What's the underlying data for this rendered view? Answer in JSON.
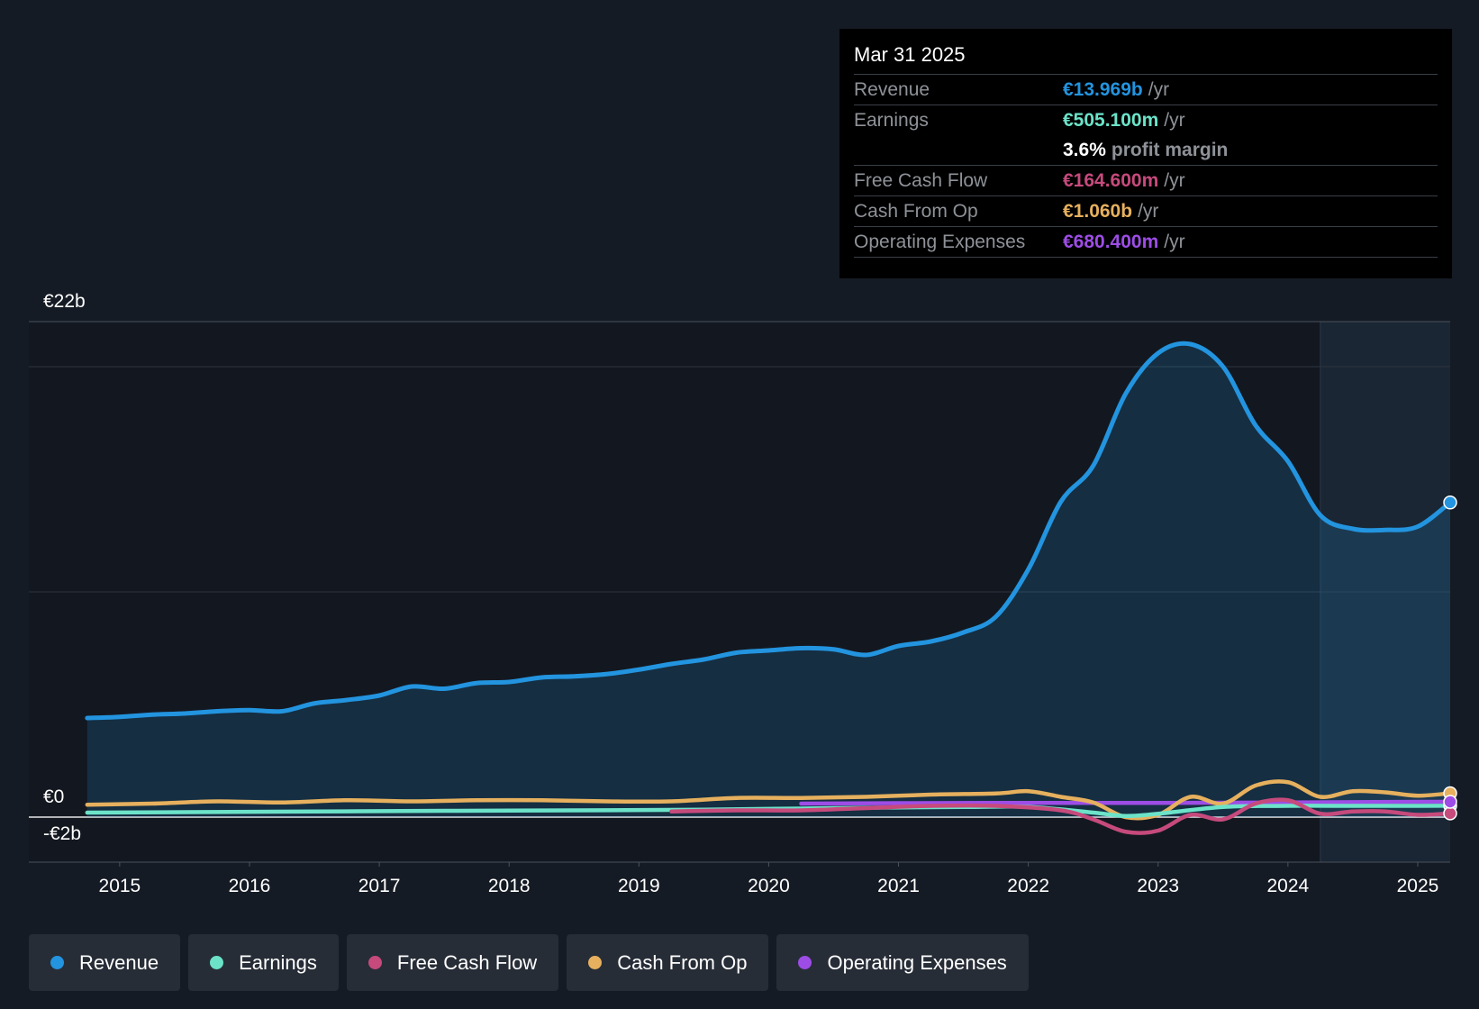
{
  "tooltip": {
    "date": "Mar 31 2025",
    "rows": [
      {
        "label": "Revenue",
        "value": "€13.969b",
        "unit": "/yr",
        "color": "#2394df"
      },
      {
        "label": "Earnings",
        "value": "€505.100m",
        "unit": "/yr",
        "color": "#6ce3c9"
      },
      {
        "label": "",
        "value": "3.6%",
        "unit": "profit margin",
        "color": "#ffffff"
      },
      {
        "label": "Free Cash Flow",
        "value": "€164.600m",
        "unit": "/yr",
        "color": "#c64a7c"
      },
      {
        "label": "Cash From Op",
        "value": "€1.060b",
        "unit": "/yr",
        "color": "#e6b05e"
      },
      {
        "label": "Operating Expenses",
        "value": "€680.400m",
        "unit": "/yr",
        "color": "#9d4de6"
      }
    ]
  },
  "chart_data": {
    "type": "line",
    "ylim": [
      -2,
      22
    ],
    "xlim": [
      2014.3,
      2025.25
    ],
    "ytick_labels": [
      {
        "value": 22,
        "label": "€22b"
      },
      {
        "value": 0,
        "label": "€0"
      },
      {
        "value": -2,
        "label": "-€2b"
      }
    ],
    "gridlines": [
      20,
      10
    ],
    "xticks": [
      {
        "value": 2015,
        "label": "2015"
      },
      {
        "value": 2016,
        "label": "2016"
      },
      {
        "value": 2017,
        "label": "2017"
      },
      {
        "value": 2018,
        "label": "2018"
      },
      {
        "value": 2019,
        "label": "2019"
      },
      {
        "value": 2020,
        "label": "2020"
      },
      {
        "value": 2021,
        "label": "2021"
      },
      {
        "value": 2022,
        "label": "2022"
      },
      {
        "value": 2023,
        "label": "2023"
      },
      {
        "value": 2024,
        "label": "2024"
      },
      {
        "value": 2025,
        "label": "2025"
      }
    ],
    "highlight_from": 2024.25,
    "series": [
      {
        "name": "Revenue",
        "color": "#2394df",
        "fill": true,
        "x": [
          2014.75,
          2015.0,
          2015.25,
          2015.5,
          2015.75,
          2016.0,
          2016.25,
          2016.5,
          2016.75,
          2017.0,
          2017.25,
          2017.5,
          2017.75,
          2018.0,
          2018.25,
          2018.5,
          2018.75,
          2019.0,
          2019.25,
          2019.5,
          2019.75,
          2020.0,
          2020.25,
          2020.5,
          2020.75,
          2021.0,
          2021.25,
          2021.5,
          2021.75,
          2022.0,
          2022.25,
          2022.5,
          2022.75,
          2023.0,
          2023.25,
          2023.5,
          2023.75,
          2024.0,
          2024.25,
          2024.5,
          2024.75,
          2025.0,
          2025.25
        ],
        "y": [
          4.4,
          4.45,
          4.55,
          4.6,
          4.7,
          4.75,
          4.7,
          5.05,
          5.2,
          5.4,
          5.8,
          5.7,
          5.95,
          6.0,
          6.2,
          6.25,
          6.35,
          6.55,
          6.8,
          7.0,
          7.3,
          7.4,
          7.5,
          7.45,
          7.2,
          7.6,
          7.8,
          8.2,
          8.9,
          11.0,
          14.0,
          15.6,
          18.8,
          20.6,
          21.0,
          20.0,
          17.4,
          15.8,
          13.4,
          12.8,
          12.75,
          12.9,
          13.969
        ]
      },
      {
        "name": "Earnings",
        "color": "#6ce3c9",
        "x": [
          2014.75,
          2015.5,
          2016.5,
          2017.5,
          2018.5,
          2019.5,
          2020.5,
          2021.5,
          2022.0,
          2022.5,
          2022.75,
          2023.0,
          2023.5,
          2024.0,
          2024.5,
          2025.0,
          2025.25
        ],
        "y": [
          0.2,
          0.22,
          0.25,
          0.28,
          0.3,
          0.33,
          0.4,
          0.45,
          0.45,
          0.2,
          0.05,
          0.15,
          0.45,
          0.5,
          0.5,
          0.5,
          0.505
        ]
      },
      {
        "name": "Free Cash Flow",
        "color": "#c64a7c",
        "x": [
          2019.25,
          2019.75,
          2020.25,
          2020.75,
          2021.25,
          2021.75,
          2022.25,
          2022.5,
          2022.75,
          2023.0,
          2023.25,
          2023.5,
          2023.75,
          2024.0,
          2024.25,
          2024.5,
          2024.75,
          2025.0,
          2025.25
        ],
        "y": [
          0.25,
          0.3,
          0.3,
          0.4,
          0.5,
          0.5,
          0.3,
          -0.1,
          -0.65,
          -0.6,
          0.1,
          -0.1,
          0.6,
          0.75,
          0.15,
          0.25,
          0.25,
          0.1,
          0.1646
        ]
      },
      {
        "name": "Cash From Op",
        "color": "#e6b05e",
        "x": [
          2014.75,
          2015.25,
          2015.75,
          2016.25,
          2016.75,
          2017.25,
          2017.75,
          2018.25,
          2018.75,
          2019.25,
          2019.75,
          2020.25,
          2020.75,
          2021.25,
          2021.75,
          2022.0,
          2022.25,
          2022.5,
          2022.75,
          2023.0,
          2023.25,
          2023.5,
          2023.75,
          2024.0,
          2024.25,
          2024.5,
          2024.75,
          2025.0,
          2025.25
        ],
        "y": [
          0.55,
          0.6,
          0.7,
          0.65,
          0.75,
          0.7,
          0.75,
          0.75,
          0.7,
          0.7,
          0.85,
          0.85,
          0.9,
          1.0,
          1.05,
          1.15,
          0.9,
          0.65,
          0.0,
          0.1,
          0.9,
          0.6,
          1.4,
          1.55,
          0.9,
          1.15,
          1.1,
          0.95,
          1.06
        ]
      },
      {
        "name": "Operating Expenses",
        "color": "#9d4de6",
        "x": [
          2020.25,
          2021.0,
          2022.0,
          2023.0,
          2024.0,
          2025.0,
          2025.25
        ],
        "y": [
          0.6,
          0.62,
          0.63,
          0.63,
          0.65,
          0.68,
          0.6804
        ]
      }
    ]
  },
  "legend": [
    {
      "label": "Revenue",
      "color": "#2394df"
    },
    {
      "label": "Earnings",
      "color": "#6ce3c9"
    },
    {
      "label": "Free Cash Flow",
      "color": "#c64a7c"
    },
    {
      "label": "Cash From Op",
      "color": "#e6b05e"
    },
    {
      "label": "Operating Expenses",
      "color": "#9d4de6"
    }
  ]
}
